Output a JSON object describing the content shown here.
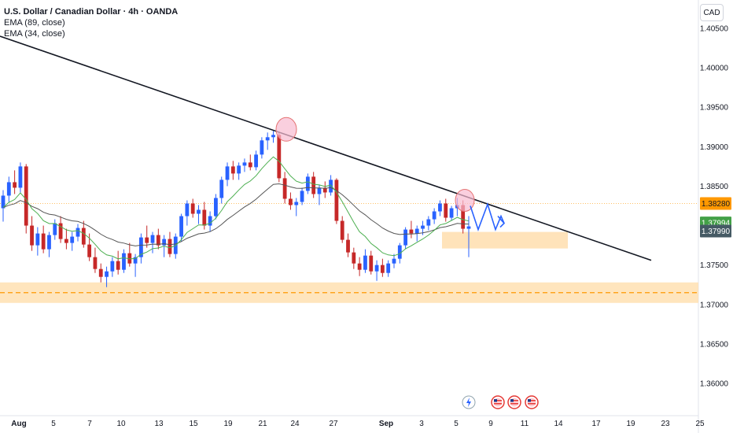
{
  "legend": {
    "title": "U.S. Dollar / Canadian Dollar · 4h · OANDA",
    "ema1": "EMA (89, close)",
    "ema2": "EMA (34, close)"
  },
  "currency_button": "CAD",
  "colors": {
    "up": "#2962ff",
    "down": "#c62828",
    "ema34": "#4caf50",
    "ema89": "#555555",
    "trendline": "#131722",
    "zone": "#ffe0b2",
    "zone_line": "#ff9800",
    "projection": "#2962ff",
    "circle_fill": "#f8bbd0",
    "circle_stroke": "#e57373"
  },
  "chart_data": {
    "type": "candlestick",
    "symbol": "USDCAD",
    "timeframe": "4h",
    "y_ticks": [
      "1.40500",
      "1.40000",
      "1.39500",
      "1.39000",
      "1.38500",
      "1.38000",
      "1.37500",
      "1.37000",
      "1.36500",
      "1.36000"
    ],
    "y_tick_values": [
      1.405,
      1.4,
      1.395,
      1.39,
      1.385,
      1.38,
      1.375,
      1.37,
      1.365,
      1.36
    ],
    "x_ticks": [
      "Aug",
      "5",
      "7",
      "10",
      "13",
      "15",
      "19",
      "21",
      "24",
      "27",
      "Sep",
      "3",
      "5",
      "9",
      "11",
      "14",
      "17",
      "19",
      "23",
      "25"
    ],
    "price_labels": [
      {
        "text": "1.38280",
        "value": 1.3828,
        "color": "#ff9800",
        "text_color": "#131722"
      },
      {
        "text": "1.37994",
        "value": 1.37994,
        "color": "#43a047",
        "text_color": "#ffffff"
      },
      {
        "text": "1.37990",
        "value": 1.3799,
        "color": "#455a64",
        "text_color": "#ffffff"
      }
    ],
    "support_zone": {
      "low": 1.3702,
      "high": 1.3728,
      "line": 1.3715
    },
    "minor_zone": {
      "low": 1.3771,
      "high": 1.3792
    },
    "trendline": {
      "start": {
        "x": "Jul 31",
        "y": 1.404
      },
      "end": {
        "x": "Sep 21",
        "y": 1.3756
      }
    },
    "touch_points": [
      {
        "x": "Aug 23",
        "y": 1.3922
      },
      {
        "x": "Sep 5",
        "y": 1.3832
      }
    ],
    "candles": [
      [
        1.3822,
        1.3845,
        1.3805,
        1.3838
      ],
      [
        1.3838,
        1.3862,
        1.383,
        1.3855
      ],
      [
        1.3855,
        1.387,
        1.384,
        1.3848
      ],
      [
        1.3848,
        1.388,
        1.3842,
        1.3875
      ],
      [
        1.3875,
        1.3878,
        1.379,
        1.38
      ],
      [
        1.38,
        1.3812,
        1.3768,
        1.3775
      ],
      [
        1.3775,
        1.3798,
        1.3762,
        1.379
      ],
      [
        1.379,
        1.38,
        1.3765,
        1.377
      ],
      [
        1.377,
        1.3792,
        1.376,
        1.3788
      ],
      [
        1.3788,
        1.3808,
        1.3782,
        1.3803
      ],
      [
        1.3803,
        1.3812,
        1.3778,
        1.3783
      ],
      [
        1.3783,
        1.3796,
        1.377,
        1.3778
      ],
      [
        1.3778,
        1.3792,
        1.3768,
        1.3786
      ],
      [
        1.3786,
        1.3802,
        1.378,
        1.3797
      ],
      [
        1.3797,
        1.3806,
        1.3772,
        1.3776
      ],
      [
        1.3776,
        1.379,
        1.3755,
        1.376
      ],
      [
        1.376,
        1.3772,
        1.374,
        1.3745
      ],
      [
        1.3745,
        1.3752,
        1.3728,
        1.3735
      ],
      [
        1.3735,
        1.3748,
        1.3722,
        1.3742
      ],
      [
        1.3742,
        1.376,
        1.3735,
        1.3755
      ],
      [
        1.3755,
        1.3768,
        1.3738,
        1.3744
      ],
      [
        1.3744,
        1.377,
        1.374,
        1.3765
      ],
      [
        1.3765,
        1.3778,
        1.3748,
        1.3752
      ],
      [
        1.3752,
        1.3764,
        1.3735,
        1.376
      ],
      [
        1.376,
        1.379,
        1.3752,
        1.3785
      ],
      [
        1.3785,
        1.38,
        1.3772,
        1.3778
      ],
      [
        1.3778,
        1.3792,
        1.3765,
        1.3788
      ],
      [
        1.3788,
        1.3796,
        1.377,
        1.3775
      ],
      [
        1.3775,
        1.3788,
        1.376,
        1.3783
      ],
      [
        1.3783,
        1.3792,
        1.376,
        1.3764
      ],
      [
        1.3764,
        1.379,
        1.3758,
        1.3786
      ],
      [
        1.3786,
        1.3815,
        1.378,
        1.3812
      ],
      [
        1.3812,
        1.3832,
        1.38,
        1.3828
      ],
      [
        1.3828,
        1.3834,
        1.381,
        1.3815
      ],
      [
        1.3815,
        1.3826,
        1.3802,
        1.382
      ],
      [
        1.382,
        1.383,
        1.3795,
        1.38
      ],
      [
        1.38,
        1.3818,
        1.3792,
        1.3812
      ],
      [
        1.3812,
        1.384,
        1.3808,
        1.3835
      ],
      [
        1.3835,
        1.3862,
        1.3828,
        1.3858
      ],
      [
        1.3858,
        1.388,
        1.385,
        1.3875
      ],
      [
        1.3875,
        1.3882,
        1.3858,
        1.3866
      ],
      [
        1.3866,
        1.388,
        1.3858,
        1.3876
      ],
      [
        1.3876,
        1.3885,
        1.3868,
        1.388
      ],
      [
        1.388,
        1.389,
        1.387,
        1.3874
      ],
      [
        1.3874,
        1.3895,
        1.387,
        1.389
      ],
      [
        1.389,
        1.3912,
        1.3885,
        1.3908
      ],
      [
        1.3908,
        1.3918,
        1.3896,
        1.3912
      ],
      [
        1.3912,
        1.392,
        1.3905,
        1.3915
      ],
      [
        1.3915,
        1.3918,
        1.3855,
        1.386
      ],
      [
        1.386,
        1.3868,
        1.3828,
        1.3834
      ],
      [
        1.3834,
        1.3842,
        1.382,
        1.3826
      ],
      [
        1.3826,
        1.3835,
        1.3812,
        1.383
      ],
      [
        1.383,
        1.3848,
        1.3826,
        1.3844
      ],
      [
        1.3844,
        1.3866,
        1.384,
        1.3862
      ],
      [
        1.3862,
        1.3868,
        1.3835,
        1.384
      ],
      [
        1.384,
        1.3852,
        1.3826,
        1.3848
      ],
      [
        1.3848,
        1.3856,
        1.3835,
        1.3842
      ],
      [
        1.3842,
        1.3864,
        1.3838,
        1.3858
      ],
      [
        1.3858,
        1.386,
        1.3802,
        1.3806
      ],
      [
        1.3806,
        1.3812,
        1.3778,
        1.3782
      ],
      [
        1.3782,
        1.379,
        1.376,
        1.3766
      ],
      [
        1.3766,
        1.3772,
        1.3745,
        1.3752
      ],
      [
        1.3752,
        1.376,
        1.3736,
        1.3744
      ],
      [
        1.3744,
        1.377,
        1.374,
        1.3762
      ],
      [
        1.3762,
        1.3768,
        1.3738,
        1.3742
      ],
      [
        1.3742,
        1.3756,
        1.373,
        1.375
      ],
      [
        1.375,
        1.3758,
        1.3735,
        1.374
      ],
      [
        1.374,
        1.3756,
        1.3735,
        1.3752
      ],
      [
        1.3752,
        1.3764,
        1.3746,
        1.3758
      ],
      [
        1.3758,
        1.3778,
        1.3752,
        1.3775
      ],
      [
        1.3775,
        1.3798,
        1.377,
        1.3795
      ],
      [
        1.3795,
        1.3806,
        1.3784,
        1.379
      ],
      [
        1.379,
        1.38,
        1.378,
        1.3796
      ],
      [
        1.3796,
        1.3806,
        1.3788,
        1.38
      ],
      [
        1.38,
        1.3812,
        1.3794,
        1.3808
      ],
      [
        1.3808,
        1.3822,
        1.3802,
        1.3818
      ],
      [
        1.3818,
        1.3832,
        1.3812,
        1.3828
      ],
      [
        1.3828,
        1.3834,
        1.3805,
        1.381
      ],
      [
        1.381,
        1.3825,
        1.3806,
        1.3822
      ],
      [
        1.3822,
        1.3835,
        1.3812,
        1.3826
      ],
      [
        1.3826,
        1.3832,
        1.379,
        1.3796
      ],
      [
        1.3796,
        1.3812,
        1.376,
        1.3799
      ]
    ],
    "projection_path": [
      [
        1.3825,
        0
      ],
      [
        1.3795,
        1
      ],
      [
        1.3826,
        2
      ],
      [
        1.3796,
        3
      ],
      [
        1.382,
        4
      ],
      [
        1.3798,
        5
      ],
      [
        1.3808,
        6
      ]
    ],
    "ema34_note": "green line",
    "ema89_note": "dark grey line"
  }
}
